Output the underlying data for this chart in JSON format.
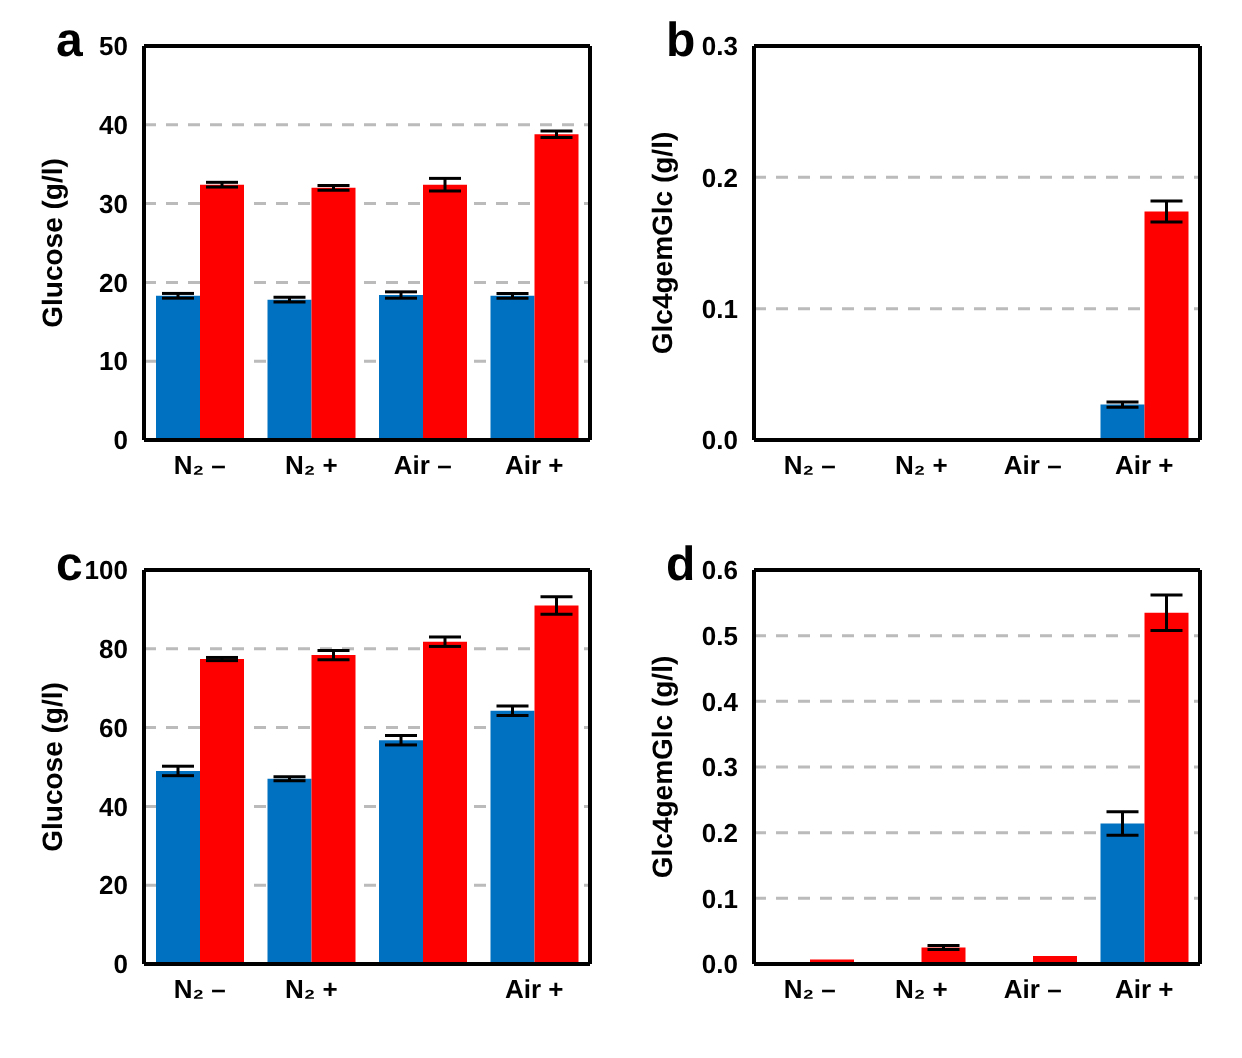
{
  "chart_data": [
    {
      "type": "bar",
      "title": "a",
      "ylabel": "Glucose (g/l)",
      "categories": [
        "N₂ –",
        "N₂ +",
        "Air –",
        "Air +"
      ],
      "ylim": [
        0,
        50
      ],
      "yticks": [
        0,
        10,
        20,
        30,
        40,
        50
      ],
      "grid": "y",
      "legend": false,
      "series": [
        {
          "color": "#0070c0",
          "values": [
            18.3,
            17.8,
            18.4,
            18.3
          ],
          "errors": [
            0.3,
            0.3,
            0.4,
            0.3
          ]
        },
        {
          "color": "#ff0000",
          "values": [
            32.4,
            32.0,
            32.4,
            38.8
          ],
          "errors": [
            0.3,
            0.3,
            0.8,
            0.4
          ]
        }
      ]
    },
    {
      "type": "bar",
      "title": "b",
      "ylabel": "Glc4gemGlc (g/l)",
      "categories": [
        "N₂ –",
        "N₂ +",
        "Air –",
        "Air +"
      ],
      "ylim": [
        0,
        0.3
      ],
      "yticks": [
        {
          "value": 0,
          "label": "0.0"
        },
        0.1,
        0.2,
        0.3
      ],
      "grid": "y",
      "legend": false,
      "series": [
        {
          "color": "#0070c0",
          "values": [
            0,
            0,
            0,
            0.027
          ],
          "errors": [
            null,
            null,
            null,
            0.002
          ]
        },
        {
          "color": "#ff0000",
          "values": [
            0,
            0,
            0,
            0.174
          ],
          "errors": [
            null,
            null,
            null,
            0.008
          ]
        }
      ]
    },
    {
      "type": "bar",
      "title": "c",
      "ylabel": "Glucose (g/l)",
      "categories": [
        "N₂ –",
        "N₂ +",
        null,
        "Air +"
      ],
      "ylim": [
        0,
        100
      ],
      "yticks": [
        0,
        20,
        40,
        60,
        80,
        100
      ],
      "grid": "y",
      "legend": false,
      "series": [
        {
          "color": "#0070c0",
          "values": [
            49,
            47,
            56.8,
            64.3
          ],
          "errors": [
            1.2,
            0.5,
            1.2,
            1.2
          ]
        },
        {
          "color": "#ff0000",
          "values": [
            77.4,
            78.4,
            81.8,
            91
          ],
          "errors": [
            0.4,
            1.2,
            1.2,
            2.2
          ]
        }
      ]
    },
    {
      "type": "bar",
      "title": "d",
      "ylabel": "Glc4gemGlc (g/l)",
      "categories": [
        "N₂ –",
        "N₂ +",
        "Air –",
        "Air +"
      ],
      "ylim": [
        0,
        0.6
      ],
      "yticks": [
        {
          "value": 0,
          "label": "0.0"
        },
        0.1,
        0.2,
        0.3,
        0.4,
        0.5,
        0.6
      ],
      "grid": "y",
      "legend": false,
      "series": [
        {
          "color": "#0070c0",
          "values": [
            null,
            null,
            null,
            0.214
          ],
          "errors": [
            null,
            null,
            null,
            0.018
          ]
        },
        {
          "color": "#ff0000",
          "values": [
            0.007,
            0.025,
            0.012,
            0.535
          ],
          "errors": [
            null,
            0.003,
            null,
            0.027
          ]
        }
      ]
    }
  ]
}
